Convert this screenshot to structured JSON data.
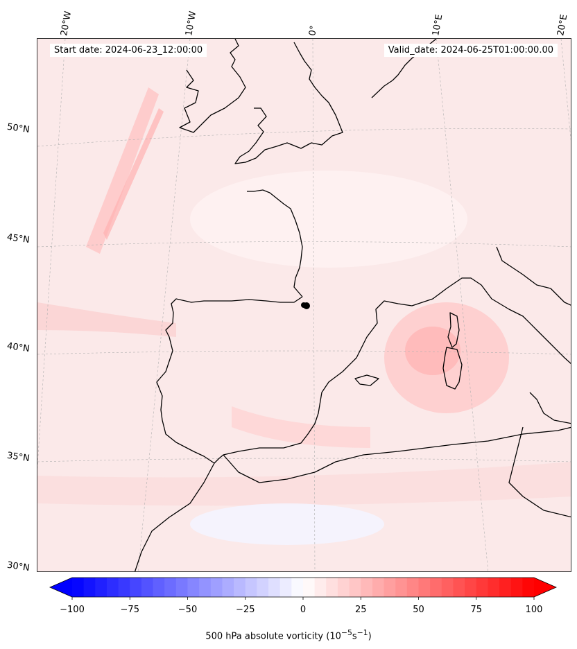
{
  "header": {
    "start_date": "Start date: 2024-06-23_12:00:00",
    "valid_date": "Valid_date: 2024-06-25T01:00:00.00"
  },
  "map": {
    "projection": "lambert-conformal",
    "lon_labels": [
      "20°W",
      "10°W",
      "0°",
      "10°E",
      "20°E"
    ],
    "lat_labels": [
      "50°N",
      "45°N",
      "40°N",
      "35°N",
      "30°N"
    ],
    "gridlines": true,
    "coastline_color": "#000000",
    "marker": "black-dot"
  },
  "colorbar": {
    "ticks": [
      "−100",
      "−75",
      "−50",
      "−25",
      "0",
      "25",
      "50",
      "75",
      "100"
    ],
    "label_prefix": "500 hPa absolute vorticity (10",
    "label_exp1": "−5",
    "label_mid": "s",
    "label_exp2": "−1",
    "label_suffix": ")",
    "vmin": -100,
    "vmax": 100,
    "n_levels": 40,
    "cmap": "bwr",
    "extend": "both"
  }
}
